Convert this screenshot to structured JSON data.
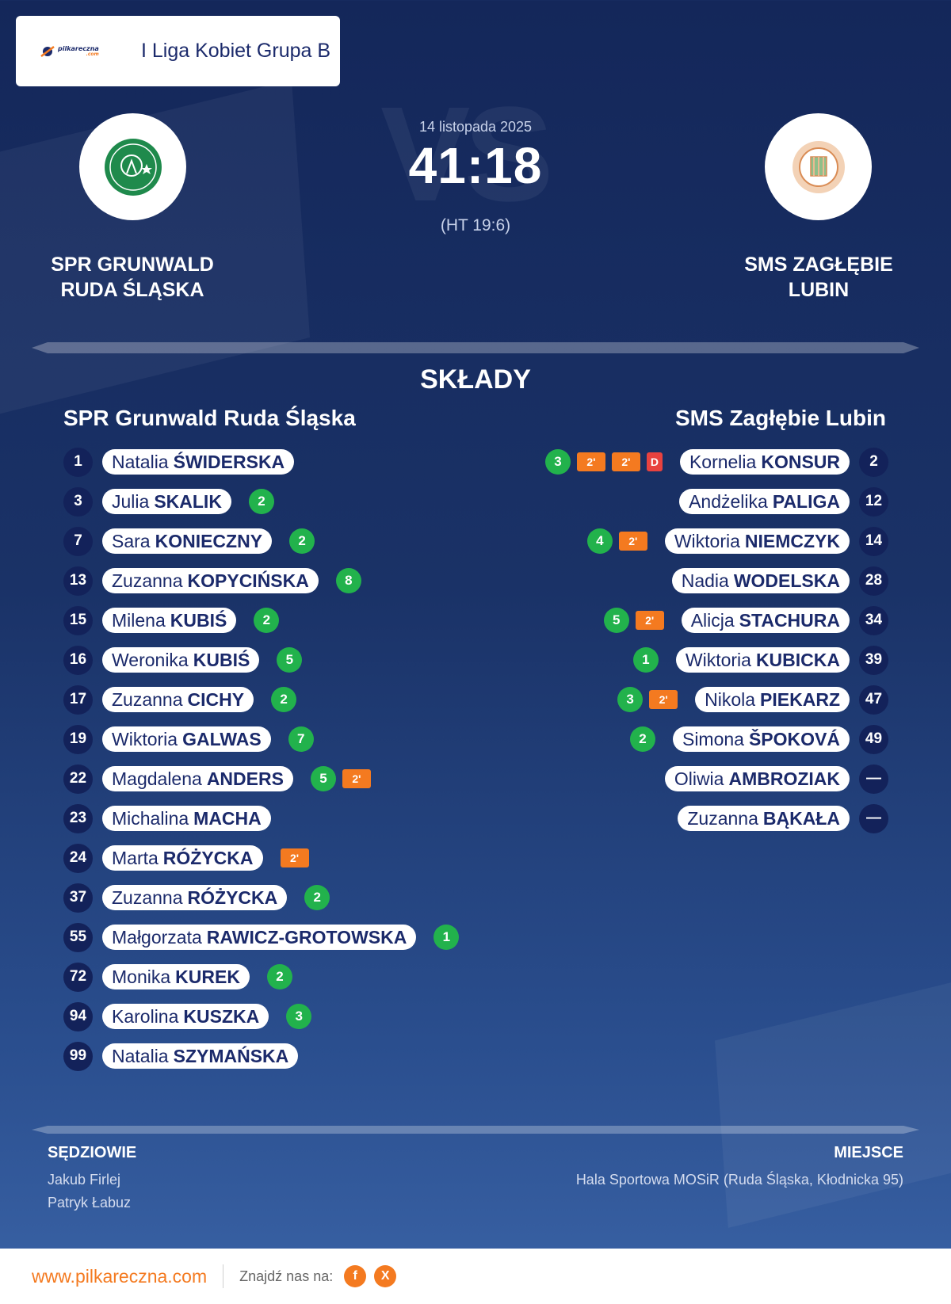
{
  "header": {
    "site_logo_text": "pilkareczna",
    "site_logo_sub": ".com",
    "league": "I Liga Kobiet Grupa B"
  },
  "match": {
    "date": "14 listopada 2025",
    "score": "41:18",
    "halftime": "(HT 19:6)",
    "vs_watermark": "VS"
  },
  "home_team": {
    "name_line1": "SPR GRUNWALD",
    "name_line2": "RUDA ŚLĄSKA",
    "crest_color": "#1f8a4c"
  },
  "away_team": {
    "name_line1": "SMS ZAGŁĘBIE",
    "name_line2": "LUBIN",
    "crest_color": "#e9b991"
  },
  "lineups": {
    "title": "SKŁADY",
    "home_title": "SPR Grunwald Ruda Śląska",
    "away_title": "SMS Zagłębie Lubin",
    "home": [
      {
        "number": "1",
        "first": "Natalia",
        "last": "ŚWIDERSKA",
        "goals": "",
        "suspensions": []
      },
      {
        "number": "3",
        "first": "Julia",
        "last": "SKALIK",
        "goals": "2",
        "suspensions": []
      },
      {
        "number": "7",
        "first": "Sara",
        "last": "KONIECZNY",
        "goals": "2",
        "suspensions": []
      },
      {
        "number": "13",
        "first": "Zuzanna",
        "last": "KOPYCIŃSKA",
        "goals": "8",
        "suspensions": []
      },
      {
        "number": "15",
        "first": "Milena",
        "last": "KUBIŚ",
        "goals": "2",
        "suspensions": []
      },
      {
        "number": "16",
        "first": "Weronika",
        "last": "KUBIŚ",
        "goals": "5",
        "suspensions": []
      },
      {
        "number": "17",
        "first": "Zuzanna",
        "last": "CICHY",
        "goals": "2",
        "suspensions": []
      },
      {
        "number": "19",
        "first": "Wiktoria",
        "last": "GALWAS",
        "goals": "7",
        "suspensions": []
      },
      {
        "number": "22",
        "first": "Magdalena",
        "last": "ANDERS",
        "goals": "5",
        "suspensions": [
          "2'"
        ]
      },
      {
        "number": "23",
        "first": "Michalina",
        "last": "MACHA",
        "goals": "",
        "suspensions": []
      },
      {
        "number": "24",
        "first": "Marta",
        "last": "RÓŻYCKA",
        "goals": "",
        "suspensions": [
          "2'"
        ]
      },
      {
        "number": "37",
        "first": "Zuzanna",
        "last": "RÓŻYCKA",
        "goals": "2",
        "suspensions": []
      },
      {
        "number": "55",
        "first": "Małgorzata",
        "last": "RAWICZ-GROTOWSKA",
        "goals": "1",
        "suspensions": []
      },
      {
        "number": "72",
        "first": "Monika",
        "last": "KUREK",
        "goals": "2",
        "suspensions": []
      },
      {
        "number": "94",
        "first": "Karolina",
        "last": "KUSZKA",
        "goals": "3",
        "suspensions": []
      },
      {
        "number": "99",
        "first": "Natalia",
        "last": "SZYMAŃSKA",
        "goals": "",
        "suspensions": []
      }
    ],
    "away": [
      {
        "number": "2",
        "first": "Kornelia",
        "last": "KONSUR",
        "goals": "3",
        "suspensions": [
          "2'",
          "2'"
        ],
        "disqualification": "D"
      },
      {
        "number": "12",
        "first": "Andżelika",
        "last": "PALIGA",
        "goals": "",
        "suspensions": []
      },
      {
        "number": "14",
        "first": "Wiktoria",
        "last": "NIEMCZYK",
        "goals": "4",
        "suspensions": [
          "2'"
        ]
      },
      {
        "number": "28",
        "first": "Nadia",
        "last": "WODELSKA",
        "goals": "",
        "suspensions": []
      },
      {
        "number": "34",
        "first": "Alicja",
        "last": "STACHURA",
        "goals": "5",
        "suspensions": [
          "2'"
        ]
      },
      {
        "number": "39",
        "first": "Wiktoria",
        "last": "KUBICKA",
        "goals": "1",
        "suspensions": []
      },
      {
        "number": "47",
        "first": "Nikola",
        "last": "PIEKARZ",
        "goals": "3",
        "suspensions": [
          "2'"
        ]
      },
      {
        "number": "49",
        "first": "Simona",
        "last": "ŠPOKOVÁ",
        "goals": "2",
        "suspensions": []
      },
      {
        "number": "—",
        "first": "Oliwia",
        "last": "AMBROZIAK",
        "goals": "",
        "suspensions": []
      },
      {
        "number": "—",
        "first": "Zuzanna",
        "last": "BĄKAŁA",
        "goals": "",
        "suspensions": []
      }
    ]
  },
  "officials": {
    "referees_title": "SĘDZIOWIE",
    "referees": [
      "Jakub Firlej",
      "Patryk Łabuz"
    ],
    "venue_title": "MIEJSCE",
    "venue": "Hala Sportowa MOSiR (Ruda Śląska, Kłodnicka 95)"
  },
  "footer": {
    "url": "www.pilkareczna.com",
    "follow_label": "Znajdź nas na:",
    "socials": [
      {
        "icon": "facebook-icon",
        "glyph": "f"
      },
      {
        "icon": "x-icon",
        "glyph": "X"
      }
    ],
    "accent_color": "#f47a20"
  },
  "colors": {
    "goals": "#22b24c",
    "suspension": "#f47a20",
    "disqualification": "#e8423f",
    "number_badge": "#13225a"
  }
}
